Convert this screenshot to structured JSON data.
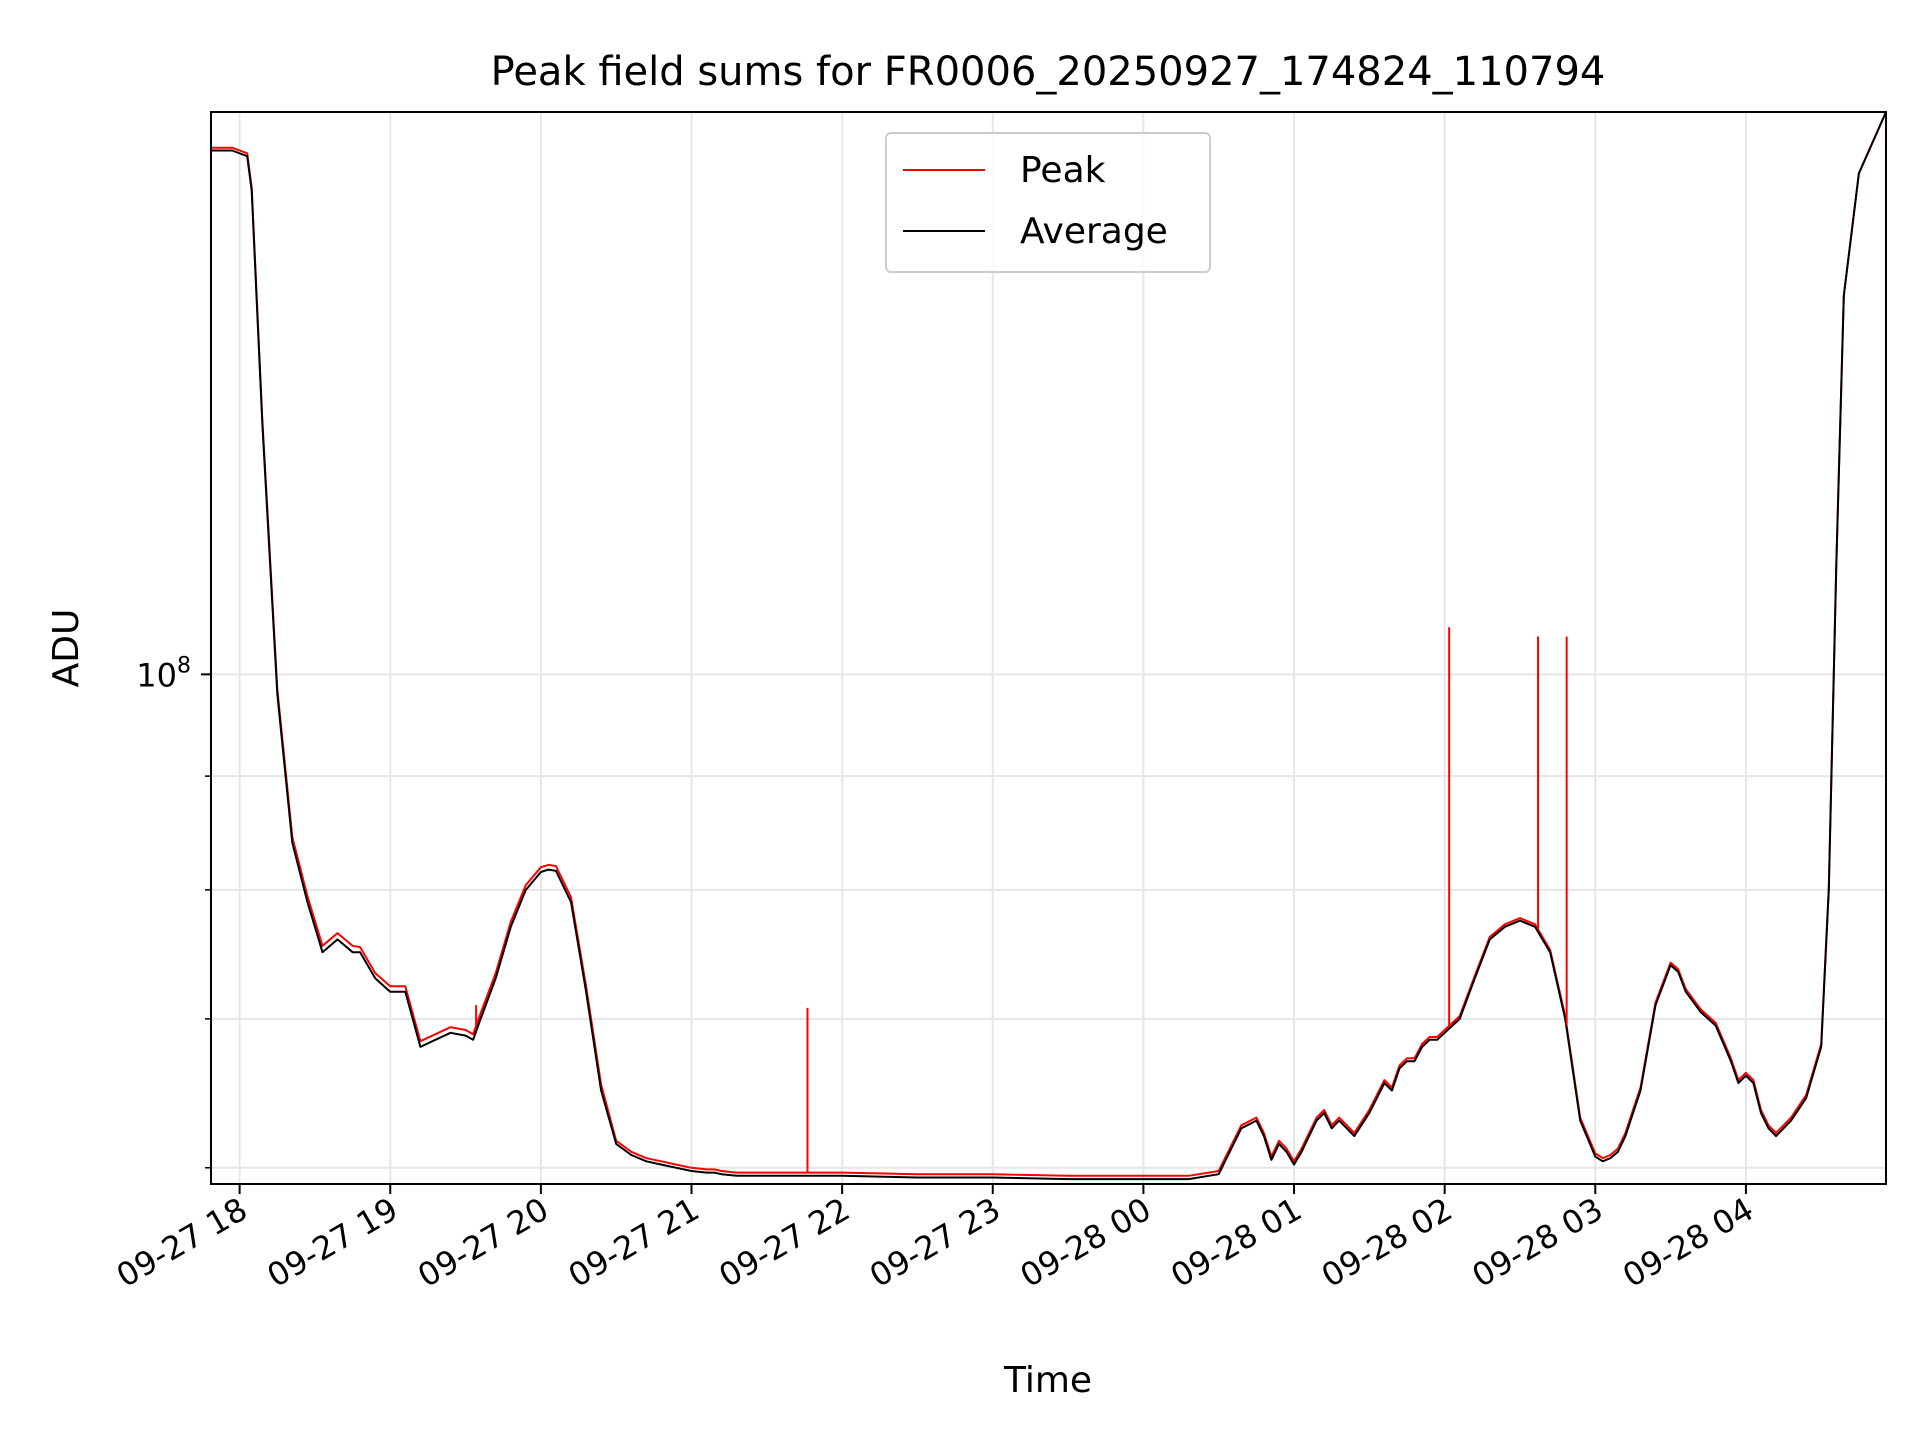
{
  "chart_data": {
    "type": "line",
    "title": "Peak field sums for FR0006_20250927_174824_110794",
    "xlabel": "Time",
    "ylabel": "ADU",
    "yscale": "log",
    "grid": true,
    "legend": {
      "placement": "top-center",
      "entries": [
        {
          "name": "Peak",
          "color": "#ff0000"
        },
        {
          "name": "Average",
          "color": "#000000"
        }
      ]
    },
    "x_unit": "hours since 2025-09-27 18:00",
    "xlim": [
      -0.19,
      10.93
    ],
    "ylim": [
      59000000,
      179000000
    ],
    "x_ticks": [
      {
        "value": 0,
        "label": "09-27 18"
      },
      {
        "value": 1,
        "label": "09-27 19"
      },
      {
        "value": 2,
        "label": "09-27 20"
      },
      {
        "value": 3,
        "label": "09-27 21"
      },
      {
        "value": 4,
        "label": "09-27 22"
      },
      {
        "value": 5,
        "label": "09-27 23"
      },
      {
        "value": 6,
        "label": "09-28 00"
      },
      {
        "value": 7,
        "label": "09-28 01"
      },
      {
        "value": 8,
        "label": "09-28 02"
      },
      {
        "value": 9,
        "label": "09-28 03"
      },
      {
        "value": 10,
        "label": "09-28 04"
      }
    ],
    "y_major_ticks": [
      {
        "value": 100000000,
        "base": "10",
        "exp": "8"
      }
    ],
    "y_minor_ticks": [
      60000000,
      70000000,
      80000000,
      90000000,
      200000000
    ],
    "series": [
      {
        "name": "Average",
        "color": "#000000",
        "x": [
          -0.19,
          -0.05,
          0.05,
          0.08,
          0.15,
          0.25,
          0.35,
          0.45,
          0.55,
          0.65,
          0.75,
          0.8,
          0.9,
          1.0,
          1.1,
          1.2,
          1.3,
          1.4,
          1.5,
          1.55,
          1.6,
          1.7,
          1.8,
          1.9,
          2.0,
          2.05,
          2.1,
          2.2,
          2.3,
          2.4,
          2.5,
          2.6,
          2.7,
          2.8,
          2.9,
          3.0,
          3.1,
          3.15,
          3.2,
          3.3,
          3.4,
          3.6,
          3.8,
          4.0,
          4.5,
          5.0,
          5.5,
          6.0,
          6.3,
          6.5,
          6.65,
          6.75,
          6.8,
          6.85,
          6.9,
          6.95,
          7.0,
          7.05,
          7.1,
          7.15,
          7.2,
          7.25,
          7.3,
          7.4,
          7.5,
          7.55,
          7.6,
          7.65,
          7.7,
          7.75,
          7.8,
          7.85,
          7.9,
          7.95,
          8.0,
          8.1,
          8.2,
          8.3,
          8.4,
          8.5,
          8.6,
          8.7,
          8.8,
          8.9,
          9.0,
          9.05,
          9.1,
          9.15,
          9.2,
          9.3,
          9.4,
          9.5,
          9.55,
          9.6,
          9.7,
          9.8,
          9.9,
          9.95,
          10.0,
          10.05,
          10.1,
          10.15,
          10.2,
          10.3,
          10.4,
          10.5,
          10.55,
          10.6,
          10.65,
          10.75,
          10.93
        ],
        "values": [
          172000000,
          172000000,
          171000000,
          165000000,
          130000000,
          98000000,
          84000000,
          79000000,
          75000000,
          76000000,
          75000000,
          75000000,
          73000000,
          72000000,
          72000000,
          68000000,
          68500000,
          69000000,
          68800000,
          68500000,
          70000000,
          73000000,
          77000000,
          80000000,
          81500000,
          81700000,
          81600000,
          79000000,
          72000000,
          65000000,
          61500000,
          60800000,
          60400000,
          60200000,
          60000000,
          59800000,
          59700000,
          59700000,
          59600000,
          59500000,
          59500000,
          59500000,
          59500000,
          59500000,
          59400000,
          59400000,
          59300000,
          59300000,
          59300000,
          59600000,
          62500000,
          63000000,
          62000000,
          60500000,
          61500000,
          61000000,
          60200000,
          61000000,
          62000000,
          63000000,
          63500000,
          62500000,
          63000000,
          62000000,
          63500000,
          64500000,
          65500000,
          65000000,
          66500000,
          67000000,
          67000000,
          68000000,
          68500000,
          68500000,
          69000000,
          70000000,
          73000000,
          76000000,
          77000000,
          77500000,
          77000000,
          75000000,
          70000000,
          63000000,
          60700000,
          60400000,
          60600000,
          61000000,
          62000000,
          65000000,
          71000000,
          74000000,
          73500000,
          72000000,
          70500000,
          69500000,
          67000000,
          65500000,
          66000000,
          65500000,
          63500000,
          62500000,
          62000000,
          63000000,
          64500000,
          68000000,
          80000000,
          112000000,
          148000000,
          168000000,
          179000000
        ]
      },
      {
        "name": "Peak",
        "color": "#ff0000",
        "x": [
          -0.19,
          -0.05,
          0.05,
          0.08,
          0.15,
          0.25,
          0.35,
          0.45,
          0.55,
          0.65,
          0.75,
          0.8,
          0.9,
          1.0,
          1.1,
          1.2,
          1.3,
          1.4,
          1.5,
          1.55,
          1.6,
          1.7,
          1.8,
          1.9,
          2.0,
          2.05,
          2.1,
          2.2,
          2.3,
          2.4,
          2.5,
          2.6,
          2.7,
          2.8,
          2.9,
          3.0,
          3.1,
          3.15,
          3.2,
          3.3,
          3.4,
          3.6,
          3.8,
          4.0,
          4.5,
          5.0,
          5.5,
          6.0,
          6.3,
          6.5,
          6.65,
          6.75,
          6.8,
          6.85,
          6.9,
          6.95,
          7.0,
          7.05,
          7.1,
          7.15,
          7.2,
          7.25,
          7.3,
          7.4,
          7.5,
          7.55,
          7.6,
          7.65,
          7.7,
          7.75,
          7.8,
          7.85,
          7.9,
          7.95,
          8.0,
          8.1,
          8.2,
          8.3,
          8.4,
          8.5,
          8.6,
          8.7,
          8.8,
          8.9,
          9.0,
          9.05,
          9.1,
          9.15,
          9.2,
          9.3,
          9.4,
          9.5,
          9.55,
          9.6,
          9.7,
          9.8,
          9.9,
          9.95,
          10.0,
          10.05,
          10.1,
          10.15,
          10.2,
          10.3,
          10.4,
          10.5,
          10.55,
          10.6,
          10.65,
          10.75,
          10.93
        ],
        "values": [
          172500000,
          172500000,
          171500000,
          165500000,
          130500000,
          98500000,
          84500000,
          79500000,
          75500000,
          76500000,
          75500000,
          75400000,
          73400000,
          72400000,
          72400000,
          68400000,
          68900000,
          69400000,
          69200000,
          68900000,
          70400000,
          73400000,
          77400000,
          80400000,
          81900000,
          82100000,
          82000000,
          79400000,
          72400000,
          65400000,
          61700000,
          61000000,
          60600000,
          60400000,
          60200000,
          60000000,
          59900000,
          59900000,
          59800000,
          59700000,
          59700000,
          59700000,
          59700000,
          59700000,
          59600000,
          59600000,
          59500000,
          59500000,
          59500000,
          59800000,
          62700000,
          63200000,
          62200000,
          60700000,
          61700000,
          61200000,
          60400000,
          61200000,
          62200000,
          63200000,
          63700000,
          62700000,
          63200000,
          62200000,
          63700000,
          64700000,
          65700000,
          65200000,
          66700000,
          67200000,
          67200000,
          68200000,
          68700000,
          68700000,
          69200000,
          70200000,
          73200000,
          76200000,
          77200000,
          77700000,
          77200000,
          75200000,
          70200000,
          63200000,
          60900000,
          60600000,
          60800000,
          61200000,
          62200000,
          65200000,
          71200000,
          74200000,
          73700000,
          72200000,
          70700000,
          69700000,
          67200000,
          65700000,
          66200000,
          65700000,
          63700000,
          62700000,
          62200000,
          63200000,
          64700000,
          68200000,
          80200000,
          112000000,
          148000000,
          168000000,
          179000000
        ]
      }
    ],
    "peak_spikes": [
      {
        "x": 1.57,
        "value": 71000000
      },
      {
        "x": 3.77,
        "value": 70800000
      },
      {
        "x": 8.03,
        "value": 105000000
      },
      {
        "x": 8.62,
        "value": 104000000
      },
      {
        "x": 8.81,
        "value": 104000000
      }
    ]
  }
}
